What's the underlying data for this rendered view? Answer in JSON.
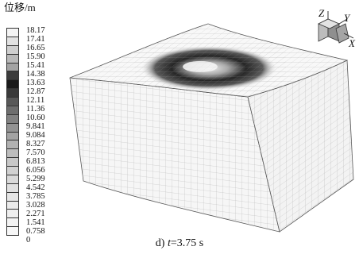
{
  "legend": {
    "title": "位移/m",
    "labels": [
      "18.17",
      "17.41",
      "16.65",
      "15.90",
      "15.41",
      "14.38",
      "13.63",
      "12.87",
      "12.11",
      "11.36",
      "10.60",
      "9.841",
      "9.084",
      "8.327",
      "7.570",
      "6.813",
      "6.056",
      "5.299",
      "4.542",
      "3.785",
      "3.028",
      "2.271",
      "1.541",
      "0.758",
      "0"
    ],
    "swatch_colors": [
      "#f4f4f4",
      "#e2e2e2",
      "#cfcfcf",
      "#b9b9b9",
      "#a3a3a3",
      "#3c3c3c",
      "#1a1a1a",
      "#3a3a3a",
      "#585858",
      "#6e6e6e",
      "#828282",
      "#939393",
      "#a3a3a3",
      "#b1b1b1",
      "#bdbdbd",
      "#c8c8c8",
      "#d1d1d1",
      "#d9d9d9",
      "#e0e0e0",
      "#e6e6e6",
      "#ebebeb",
      "#efefef",
      "#f3f3f3",
      "#f7f7f7"
    ]
  },
  "axes": {
    "z_label": "Z",
    "y_label": "Y",
    "x_label": "X"
  },
  "caption": {
    "prefix": "d) ",
    "variable": "t",
    "value": "=3.75 s"
  }
}
